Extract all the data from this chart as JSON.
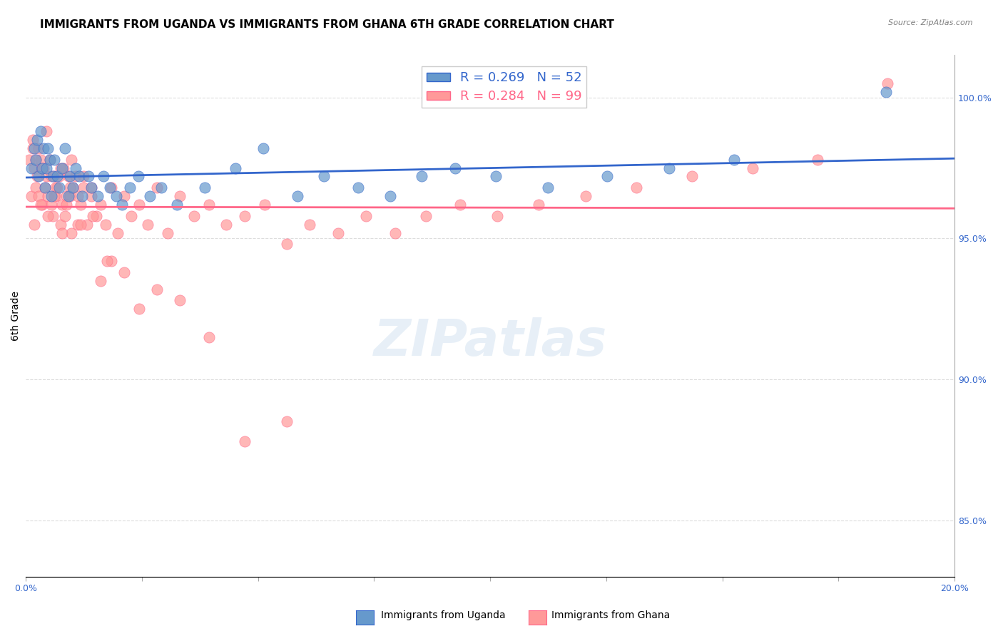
{
  "title": "IMMIGRANTS FROM UGANDA VS IMMIGRANTS FROM GHANA 6TH GRADE CORRELATION CHART",
  "source": "Source: ZipAtlas.com",
  "xlabel": "",
  "ylabel": "6th Grade",
  "xlim": [
    0.0,
    20.0
  ],
  "ylim": [
    83.0,
    101.5
  ],
  "x_ticks": [
    0.0,
    2.5,
    5.0,
    7.5,
    10.0,
    12.5,
    15.0,
    17.5,
    20.0
  ],
  "x_tick_labels": [
    "0.0%",
    "",
    "",
    "",
    "",
    "",
    "",
    "",
    "20.0%"
  ],
  "y_ticks_right": [
    85.0,
    90.0,
    95.0,
    100.0
  ],
  "y_tick_labels_right": [
    "85.0%",
    "90.0%",
    "95.0%",
    "100.0%"
  ],
  "uganda_color": "#6699cc",
  "ghana_color": "#ff9999",
  "uganda_line_color": "#3366cc",
  "ghana_line_color": "#ff6688",
  "R_uganda": 0.269,
  "N_uganda": 52,
  "R_ghana": 0.284,
  "N_ghana": 99,
  "uganda_x": [
    0.12,
    0.18,
    0.22,
    0.25,
    0.28,
    0.32,
    0.35,
    0.38,
    0.42,
    0.45,
    0.48,
    0.52,
    0.55,
    0.58,
    0.62,
    0.68,
    0.72,
    0.78,
    0.85,
    0.92,
    0.95,
    1.02,
    1.08,
    1.15,
    1.22,
    1.35,
    1.42,
    1.55,
    1.68,
    1.82,
    1.95,
    2.08,
    2.25,
    2.42,
    2.68,
    2.92,
    3.25,
    3.85,
    4.52,
    5.12,
    5.85,
    6.42,
    7.15,
    7.85,
    8.52,
    9.25,
    10.12,
    11.25,
    12.52,
    13.85,
    15.25,
    18.52
  ],
  "uganda_y": [
    97.5,
    98.2,
    97.8,
    98.5,
    97.2,
    98.8,
    97.5,
    98.2,
    96.8,
    97.5,
    98.2,
    97.8,
    96.5,
    97.2,
    97.8,
    97.2,
    96.8,
    97.5,
    98.2,
    96.5,
    97.2,
    96.8,
    97.5,
    97.2,
    96.5,
    97.2,
    96.8,
    96.5,
    97.2,
    96.8,
    96.5,
    96.2,
    96.8,
    97.2,
    96.5,
    96.8,
    96.2,
    96.8,
    97.5,
    98.2,
    96.5,
    97.2,
    96.8,
    96.5,
    97.2,
    97.5,
    97.2,
    96.8,
    97.2,
    97.5,
    97.8,
    100.2
  ],
  "ghana_x": [
    0.08,
    0.12,
    0.15,
    0.18,
    0.22,
    0.25,
    0.28,
    0.32,
    0.35,
    0.38,
    0.42,
    0.45,
    0.48,
    0.52,
    0.55,
    0.58,
    0.62,
    0.65,
    0.68,
    0.72,
    0.75,
    0.78,
    0.82,
    0.85,
    0.88,
    0.92,
    0.95,
    0.98,
    1.02,
    1.08,
    1.12,
    1.18,
    1.25,
    1.32,
    1.42,
    1.52,
    1.62,
    1.72,
    1.85,
    1.98,
    2.12,
    2.28,
    2.45,
    2.62,
    2.82,
    3.05,
    3.32,
    3.62,
    3.95,
    4.32,
    4.72,
    5.15,
    5.62,
    6.12,
    6.72,
    7.32,
    7.95,
    8.62,
    9.35,
    10.15,
    11.05,
    12.05,
    13.15,
    14.35,
    15.65,
    17.05,
    18.55,
    0.15,
    0.22,
    0.28,
    0.35,
    0.45,
    0.55,
    0.65,
    0.75,
    0.88,
    0.98,
    1.12,
    1.25,
    1.42,
    1.62,
    1.85,
    2.12,
    2.45,
    2.82,
    3.32,
    3.95,
    4.72,
    5.62,
    0.18,
    0.32,
    0.48,
    0.62,
    0.78,
    0.95,
    1.18,
    1.45,
    1.75
  ],
  "ghana_y": [
    97.8,
    96.5,
    98.2,
    97.5,
    96.8,
    97.2,
    96.5,
    97.8,
    96.2,
    97.5,
    96.8,
    97.2,
    96.5,
    97.8,
    96.2,
    95.8,
    97.2,
    96.5,
    96.8,
    97.2,
    95.5,
    96.2,
    97.5,
    95.8,
    96.5,
    97.2,
    96.5,
    95.2,
    96.8,
    97.2,
    95.5,
    96.2,
    96.8,
    95.5,
    96.5,
    95.8,
    96.2,
    95.5,
    96.8,
    95.2,
    96.5,
    95.8,
    96.2,
    95.5,
    96.8,
    95.2,
    96.5,
    95.8,
    96.2,
    95.5,
    95.8,
    96.2,
    94.8,
    95.5,
    95.2,
    95.8,
    95.2,
    95.8,
    96.2,
    95.8,
    96.2,
    96.5,
    96.8,
    97.2,
    97.5,
    97.8,
    100.5,
    98.5,
    97.8,
    98.2,
    97.5,
    98.8,
    97.2,
    96.8,
    97.5,
    96.2,
    97.8,
    96.5,
    97.2,
    96.8,
    93.5,
    94.2,
    93.8,
    92.5,
    93.2,
    92.8,
    91.5,
    87.8,
    88.5,
    95.5,
    96.2,
    95.8,
    96.5,
    95.2,
    96.8,
    95.5,
    95.8,
    94.2
  ],
  "watermark": "ZIPatlas",
  "background_color": "#ffffff",
  "grid_color": "#dddddd",
  "title_fontsize": 11,
  "axis_label_fontsize": 10,
  "tick_fontsize": 9
}
